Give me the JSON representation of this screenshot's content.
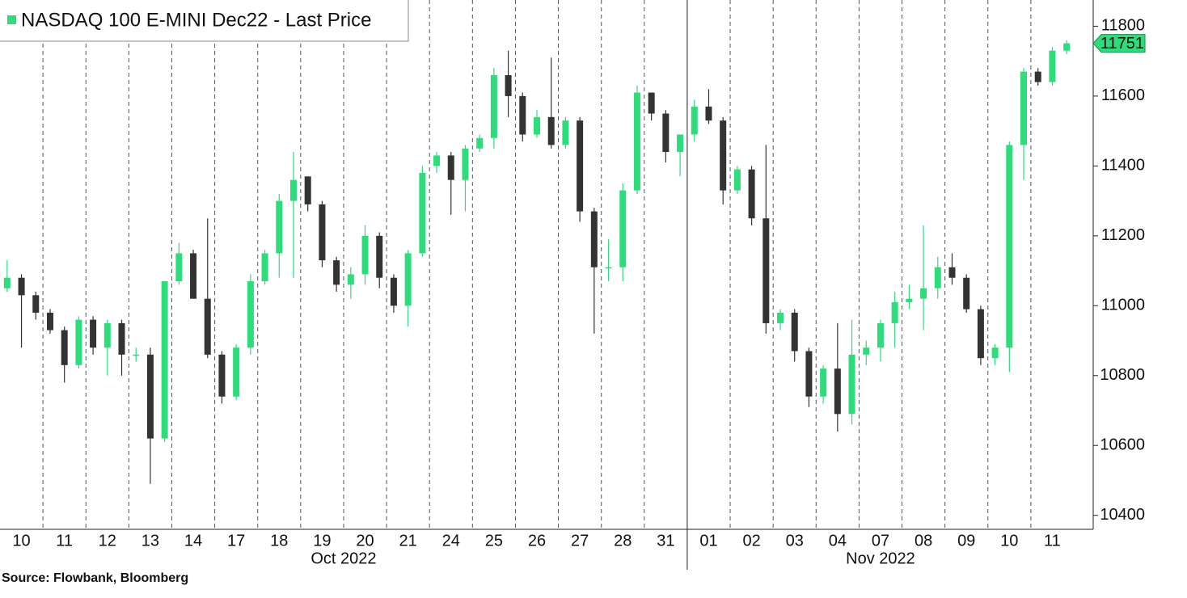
{
  "chart_data": {
    "type": "candlestick",
    "title": "NASDAQ 100 E-MINI Dec22 - Last Price",
    "source": "Source: Flowbank, Bloomberg",
    "categories": [
      "10",
      "11",
      "12",
      "13",
      "14",
      "17",
      "18",
      "19",
      "20",
      "21",
      "24",
      "25",
      "26",
      "27",
      "28",
      "31",
      "01",
      "02",
      "03",
      "04",
      "07",
      "08",
      "09",
      "10",
      "11"
    ],
    "month_labels": [
      "Oct 2022",
      "Nov 2022"
    ],
    "up_color": "#2edc7c",
    "down_color": "#333333",
    "last_price": 11751,
    "ylim": [
      10360,
      11875
    ],
    "yticks": [
      10400,
      10600,
      10800,
      11000,
      11200,
      11400,
      11600,
      11800
    ],
    "open": [
      11050,
      11080,
      11030,
      10980,
      10930,
      10830,
      10960,
      10880,
      10950,
      10860,
      10860,
      10620,
      11070,
      11150,
      11020,
      10860,
      10740,
      10880,
      11070,
      11150,
      11300,
      11370,
      11290,
      11130,
      11060,
      11090,
      11200,
      11080,
      11000,
      11150,
      11400,
      11430,
      11360,
      11450,
      11480,
      11660,
      11600,
      11490,
      11540,
      11460,
      11530,
      11270,
      11110,
      11110,
      11330,
      11610,
      11550,
      11440,
      11490,
      11570,
      11530,
      11330,
      11390,
      11250,
      10950,
      10980,
      10870,
      10740,
      10820,
      10690,
      10860,
      10880,
      10950,
      11010,
      11020,
      11050,
      11110,
      11080,
      10990,
      10850,
      10880,
      11460,
      11670,
      11640,
      11730
    ],
    "high": [
      11130,
      11090,
      11040,
      10990,
      10940,
      10970,
      10970,
      10960,
      10960,
      10880,
      10880,
      11070,
      11180,
      11160,
      11250,
      10870,
      10890,
      11090,
      11160,
      11320,
      11440,
      11370,
      11300,
      11140,
      11110,
      11230,
      11210,
      11090,
      11160,
      11400,
      11440,
      11440,
      11460,
      11490,
      11680,
      11730,
      11610,
      11560,
      11710,
      11540,
      11540,
      11280,
      11190,
      11350,
      11630,
      11610,
      11560,
      11490,
      11590,
      11620,
      11540,
      11400,
      11400,
      11460,
      10990,
      10990,
      10880,
      10830,
      10950,
      10960,
      10900,
      10960,
      11040,
      11060,
      11230,
      11140,
      11150,
      11090,
      11000,
      10890,
      11470,
      11680,
      11680,
      11740,
      11760
    ],
    "low": [
      11040,
      10880,
      10960,
      10920,
      10780,
      10820,
      10860,
      10800,
      10800,
      10840,
      10490,
      10610,
      11060,
      11020,
      10850,
      10720,
      10730,
      10860,
      11060,
      11080,
      11080,
      11270,
      11110,
      11040,
      11020,
      11060,
      11050,
      10980,
      10940,
      11140,
      11380,
      11260,
      11270,
      11440,
      11450,
      11540,
      11470,
      11480,
      11450,
      11450,
      11240,
      10920,
      11070,
      11070,
      11320,
      11530,
      11410,
      11370,
      11470,
      11520,
      11290,
      11320,
      11230,
      10920,
      10930,
      10840,
      10710,
      10720,
      10640,
      10660,
      10830,
      10840,
      10880,
      10990,
      10930,
      11020,
      11060,
      10980,
      10830,
      10830,
      10810,
      11360,
      11630,
      11630,
      11720
    ],
    "close": [
      11080,
      11030,
      10980,
      10930,
      10830,
      10960,
      10880,
      10950,
      10860,
      10860,
      10620,
      11070,
      11150,
      11020,
      10860,
      10740,
      10880,
      11070,
      11150,
      11300,
      11360,
      11290,
      11130,
      11060,
      11090,
      11200,
      11080,
      11000,
      11150,
      11380,
      11430,
      11360,
      11450,
      11480,
      11660,
      11600,
      11490,
      11540,
      11460,
      11530,
      11270,
      11110,
      11110,
      11330,
      11610,
      11550,
      11440,
      11490,
      11570,
      11530,
      11330,
      11390,
      11250,
      10950,
      10980,
      10870,
      10740,
      10820,
      10690,
      10860,
      10880,
      10950,
      11010,
      11020,
      11050,
      11110,
      11080,
      10990,
      10850,
      10880,
      11460,
      11670,
      11640,
      11730,
      11751
    ]
  }
}
